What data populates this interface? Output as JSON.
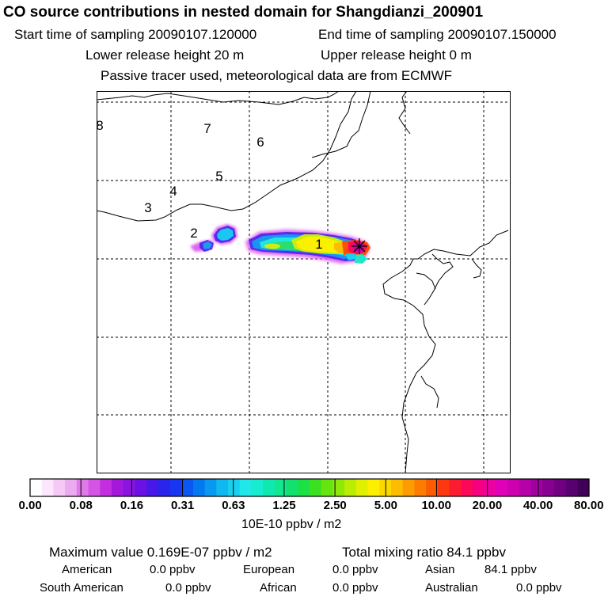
{
  "header": {
    "title": "CO  source contributions in nested domain for Shangdianzi_200901",
    "start_time": "Start time of sampling 20090107.120000",
    "end_time": "End time of sampling 20090107.150000",
    "lower_height": "Lower release height   20 m",
    "upper_height": "Upper release height    0 m",
    "tracer_note": "Passive tracer used, meteorological data are from ECMWF"
  },
  "map": {
    "trajectory_labels": [
      "1",
      "2",
      "3",
      "4",
      "5",
      "6",
      "7",
      "8"
    ],
    "receptor_marker": "station-marker"
  },
  "colorbar": {
    "tick_labels": [
      "0.00",
      "0.08",
      "0.16",
      "0.31",
      "0.63",
      "1.25",
      "2.50",
      "5.00",
      "10.00",
      "20.00",
      "40.00",
      "80.00"
    ],
    "unit": "10E-10 ppbv / m2",
    "colors": [
      "#ffffff",
      "#fbe6fb",
      "#f4c9f5",
      "#ecaaf0",
      "#e07ae9",
      "#d455e4",
      "#c22ee0",
      "#a418dc",
      "#8c14e0",
      "#6a12e4",
      "#4818e8",
      "#2a24ec",
      "#1636f0",
      "#0c56f2",
      "#0478f0",
      "#0898f0",
      "#10b8f0",
      "#18d0f0",
      "#20e8e8",
      "#18ecd0",
      "#10e8b0",
      "#10e890",
      "#14e070",
      "#1ce048",
      "#3ce020",
      "#64e410",
      "#90e808",
      "#bcec04",
      "#e0f000",
      "#fcf000",
      "#fcd800",
      "#fcbc00",
      "#fc9c00",
      "#fc7c00",
      "#fc5c00",
      "#fc3810",
      "#fc1c30",
      "#fc0858",
      "#f40080",
      "#ec00a0",
      "#e000b8",
      "#cc00b0",
      "#b800a8",
      "#a000a0",
      "#880090",
      "#700080",
      "#580070",
      "#400058"
    ]
  },
  "stats": {
    "max_value": "Maximum value  0.169E-07 ppbv / m2",
    "total_mixing": "Total mixing ratio       84.1 ppbv",
    "american_label": "American",
    "american_value": "0.0 ppbv",
    "european_label": "European",
    "european_value": "0.0 ppbv",
    "asian_label": "Asian",
    "asian_value": "84.1 ppbv",
    "south_american_label": "South American",
    "south_american_value": "0.0 ppbv",
    "african_label": "African",
    "african_value": "0.0 ppbv",
    "australian_label": "Australian",
    "australian_value": "0.0 ppbv"
  }
}
